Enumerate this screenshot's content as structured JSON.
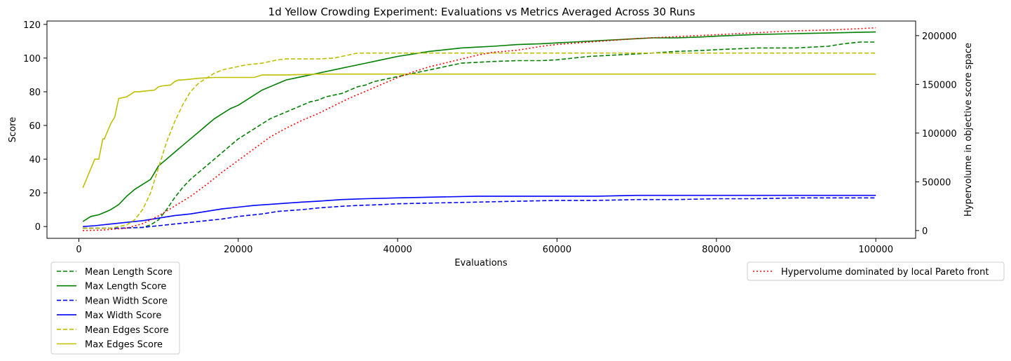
{
  "chart_data": {
    "type": "line",
    "title": "1d Yellow Crowding Experiment: Evaluations vs Metrics Averaged Across 30 Runs",
    "xlabel": "Evaluations",
    "ylabel": "Score",
    "y2label": "Hypervolume in objective score space",
    "xlim": [
      -4000,
      105000
    ],
    "ylim": [
      -7,
      122
    ],
    "y2lim": [
      -8000,
      215000
    ],
    "xticks": [
      0,
      20000,
      40000,
      60000,
      80000,
      100000
    ],
    "yticks": [
      0,
      20,
      40,
      60,
      80,
      100,
      120
    ],
    "y2ticks": [
      0,
      50000,
      100000,
      150000,
      200000
    ],
    "grid": false,
    "legend_left_placement": "below-left",
    "legend_right_placement": "below-right",
    "series": [
      {
        "name": "Mean Length Score",
        "axis": "left",
        "color": "#008000",
        "dash": "dashed",
        "x": [
          500,
          5000,
          8000,
          9000,
          10000,
          11000,
          12000,
          13000,
          14000,
          15000,
          16000,
          17000,
          18000,
          19000,
          20000,
          21000,
          22000,
          23000,
          24000,
          25000,
          26000,
          27000,
          28000,
          29000,
          30000,
          31000,
          32000,
          33000,
          34000,
          35000,
          36000,
          37000,
          38000,
          39000,
          40000,
          42000,
          44000,
          46000,
          48000,
          50000,
          52000,
          55000,
          58000,
          60000,
          62000,
          64000,
          66000,
          68000,
          70000,
          72000,
          75000,
          78000,
          80000,
          85000,
          90000,
          92000,
          94000,
          96000,
          98000,
          100000
        ],
        "y": [
          -1,
          -1,
          -0.5,
          1,
          4,
          10,
          17,
          23,
          28,
          32,
          36,
          40,
          44,
          48,
          52,
          55,
          58,
          61,
          64,
          66,
          68,
          70,
          72,
          74,
          75,
          77,
          78,
          79,
          81,
          83,
          84,
          86,
          87,
          88,
          89,
          91,
          93,
          95,
          97,
          97.5,
          98,
          98.5,
          98.5,
          99,
          100,
          101,
          101.5,
          102,
          102.5,
          103,
          104,
          104.5,
          105,
          106,
          106,
          106.5,
          107,
          108.5,
          109.5,
          109.5
        ]
      },
      {
        "name": "Max Length Score",
        "axis": "left",
        "color": "#008000",
        "dash": "solid",
        "x": [
          500,
          1500,
          2500,
          3000,
          3500,
          4000,
          5000,
          6000,
          7000,
          8000,
          9000,
          9500,
          10000,
          11000,
          12000,
          13000,
          14000,
          15000,
          16000,
          17000,
          18000,
          19000,
          20000,
          21000,
          22000,
          23000,
          24000,
          25000,
          26000,
          27000,
          28000,
          30000,
          32000,
          34000,
          36000,
          38000,
          40000,
          42000,
          44000,
          46000,
          48000,
          50000,
          52000,
          55000,
          58000,
          60000,
          62000,
          64000,
          66000,
          68000,
          70000,
          72000,
          75000,
          78000,
          80000,
          85000,
          90000,
          95000,
          100000
        ],
        "y": [
          3,
          6,
          7,
          8,
          9,
          10,
          13,
          18,
          22,
          25,
          28,
          32,
          36,
          40,
          44,
          48,
          52,
          56,
          60,
          64,
          67,
          70,
          72,
          75,
          78,
          81,
          83,
          85,
          87,
          88,
          89,
          91,
          93,
          95,
          97,
          99,
          101,
          102.5,
          104,
          105,
          106,
          106.5,
          107,
          108,
          108.5,
          109,
          109.5,
          110,
          110.5,
          111,
          111.5,
          112,
          112,
          112.5,
          113,
          114,
          114.5,
          115,
          115.5
        ]
      },
      {
        "name": "Mean Width Score",
        "axis": "left",
        "color": "#0000ff",
        "dash": "dashed",
        "x": [
          500,
          5000,
          8000,
          10000,
          12000,
          15000,
          18000,
          20000,
          23000,
          25000,
          28000,
          30000,
          33000,
          35000,
          38000,
          40000,
          45000,
          50000,
          55000,
          60000,
          65000,
          70000,
          75000,
          80000,
          85000,
          90000,
          95000,
          100000
        ],
        "y": [
          -1,
          -1,
          -0.5,
          0.5,
          1.5,
          3,
          4.5,
          6,
          7.5,
          9,
          10,
          11,
          12,
          12.5,
          13,
          13.5,
          14,
          14.5,
          15,
          15.5,
          15.5,
          16,
          16,
          16.5,
          16.5,
          17,
          17,
          17
        ]
      },
      {
        "name": "Max Width Score",
        "axis": "left",
        "color": "#0000ff",
        "dash": "solid",
        "x": [
          500,
          2000,
          4000,
          6000,
          8000,
          10000,
          12000,
          14000,
          16000,
          18000,
          20000,
          22000,
          25000,
          28000,
          30000,
          33000,
          36000,
          40000,
          45000,
          50000,
          55000,
          60000,
          65000,
          70000,
          75000,
          80000,
          90000,
          100000
        ],
        "y": [
          0,
          0.5,
          1.5,
          2.5,
          3.5,
          5,
          6.5,
          7.5,
          9,
          10.5,
          11.5,
          12.5,
          13.5,
          14.5,
          15,
          16,
          16.5,
          17,
          17.5,
          18,
          18,
          18,
          18,
          18.5,
          18.5,
          18.5,
          18.5,
          18.5
        ]
      },
      {
        "name": "Mean Edges Score",
        "axis": "left",
        "color": "#bfbf00",
        "dash": "dashed",
        "x": [
          500,
          4000,
          6000,
          7000,
          8000,
          9000,
          10000,
          11000,
          12000,
          13000,
          14000,
          15000,
          16000,
          17000,
          18000,
          19000,
          20000,
          21000,
          22000,
          23000,
          24000,
          25000,
          26000,
          28000,
          30000,
          32000,
          33000,
          34000,
          35000,
          40000,
          50000,
          60000,
          70000,
          80000,
          90000,
          100000
        ],
        "y": [
          -1,
          -1,
          1,
          4,
          10,
          20,
          35,
          50,
          62,
          72,
          80,
          85,
          88,
          91,
          93,
          94,
          95,
          96,
          96.5,
          97,
          98,
          99,
          99.5,
          99.5,
          99.5,
          100,
          101,
          102,
          103,
          103,
          103,
          103,
          103,
          103,
          103,
          103
        ]
      },
      {
        "name": "Max Edges Score",
        "axis": "left",
        "color": "#bfbf00",
        "dash": "solid",
        "x": [
          500,
          2000,
          2500,
          3000,
          3200,
          4000,
          4500,
          5000,
          6000,
          7000,
          7500,
          8500,
          9500,
          10000,
          10500,
          11500,
          12000,
          12500,
          13000,
          14000,
          15000,
          17000,
          20000,
          22000,
          23000,
          26000,
          30000,
          35000,
          40000,
          50000,
          60000,
          70000,
          80000,
          90000,
          100000
        ],
        "y": [
          23,
          40,
          40,
          52,
          52,
          61,
          65,
          76,
          77,
          80,
          80,
          80.5,
          81,
          83,
          83.5,
          84,
          86,
          87,
          87,
          87.5,
          88,
          88.5,
          88.5,
          88.5,
          90,
          90,
          90.5,
          90.5,
          90.5,
          90.5,
          90.5,
          90.5,
          90.5,
          90.5,
          90.5
        ]
      },
      {
        "name": "Hypervolume dominated by local Pareto front",
        "axis": "right",
        "color": "#ff0000",
        "dash": "dotted",
        "x": [
          500,
          3000,
          6000,
          8000,
          10000,
          12000,
          14000,
          16000,
          18000,
          20000,
          22000,
          24000,
          26000,
          28000,
          30000,
          32000,
          34000,
          36000,
          38000,
          40000,
          42000,
          44000,
          46000,
          48000,
          50000,
          52000,
          55000,
          58000,
          60000,
          65000,
          70000,
          75000,
          80000,
          85000,
          90000,
          95000,
          100000
        ],
        "y": [
          0,
          500,
          2500,
          7000,
          15000,
          25000,
          35000,
          47000,
          60000,
          72000,
          84000,
          96000,
          105000,
          113000,
          120000,
          128000,
          136000,
          143000,
          150000,
          157000,
          163000,
          168000,
          172000,
          176000,
          180000,
          183000,
          185000,
          189000,
          191000,
          194000,
          197000,
          199000,
          201000,
          203000,
          205000,
          206000,
          208000
        ]
      }
    ]
  }
}
